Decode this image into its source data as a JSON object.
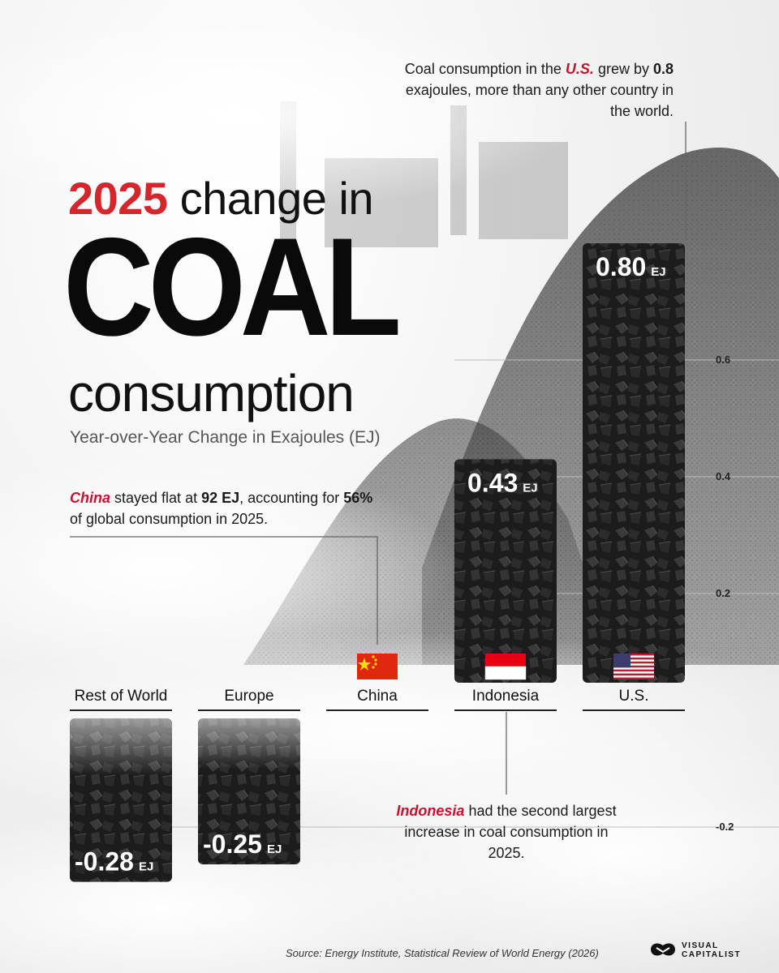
{
  "title": {
    "year": "2025",
    "line1_rest": " change in",
    "line2": "COAL",
    "line3": "consumption"
  },
  "subtitle": "Year-over-Year Change in Exajoules (EJ)",
  "annotations": {
    "us": {
      "pre": "Coal consumption in the ",
      "country": "U.S.",
      "mid": " grew by ",
      "value": "0.8",
      "post": " exajoules, more than any other country in the world."
    },
    "china": {
      "country": "China",
      "mid": " stayed flat at ",
      "value": "92 EJ",
      "mid2": ", accounting for ",
      "share": "56%",
      "post": " of global consumption in 2025."
    },
    "indonesia": {
      "country": "Indonesia",
      "post": " had the second largest increase in coal consumption in 2025."
    }
  },
  "source": "Source: Energy Institute, Statistical Review of World Energy (2026)",
  "brand": {
    "line1": "VISUAL",
    "line2": "CAPITALIST"
  },
  "colors": {
    "accent": "#d4262b",
    "coal": "#1b1b1b",
    "text": "#111111"
  },
  "chart_data": {
    "type": "bar",
    "categories": [
      "Rest of World",
      "Europe",
      "China",
      "Indonesia",
      "U.S."
    ],
    "values": [
      -0.28,
      -0.25,
      0,
      0.43,
      0.8
    ],
    "value_labels": [
      "-0.28",
      "-0.25",
      "",
      "0.43",
      "0.80"
    ],
    "unit": "EJ",
    "flags": [
      "",
      "",
      "flag-china-icon",
      "flag-indonesia-icon",
      "flag-us-icon"
    ],
    "y_ticks": [
      {
        "value": 0.6,
        "label": "0.6"
      },
      {
        "value": 0.4,
        "label": "0.4"
      },
      {
        "value": 0.2,
        "label": "0.2"
      },
      {
        "value": -0.2,
        "label": "-0.2"
      }
    ],
    "ylim": [
      -0.3,
      0.85
    ],
    "grid": true
  }
}
